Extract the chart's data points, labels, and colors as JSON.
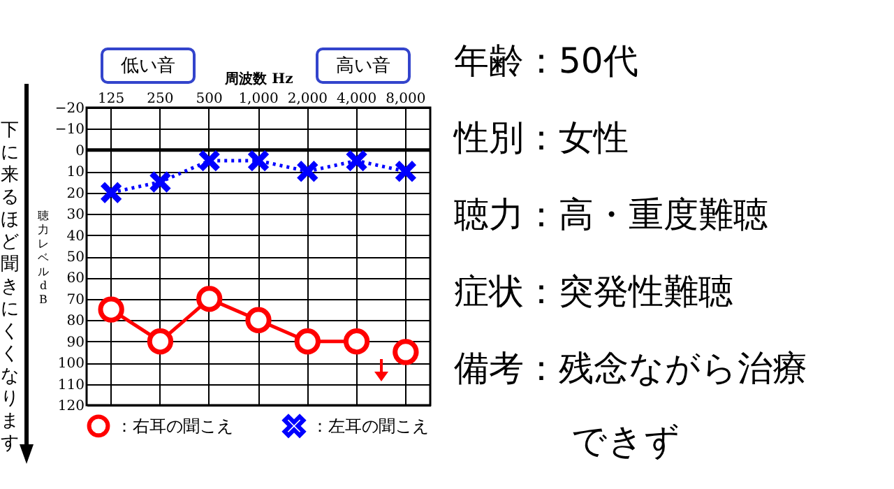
{
  "chart_data": [
    {
      "type": "line",
      "xlabel": "周波数 Hz",
      "ylabel": "聴力レベル dB",
      "categories": [
        "125",
        "250",
        "500",
        "1,000",
        "2,000",
        "4,000",
        "8,000"
      ],
      "series": [
        {
          "name": "：右耳の聞こえ",
          "color": "#ff0000",
          "values": [
            75,
            90,
            70,
            80,
            90,
            90,
            null
          ],
          "marker": "circle",
          "line_style": "solid"
        },
        {
          "color": "#ff0000",
          "values": [
            null,
            null,
            null,
            null,
            null,
            null,
            95
          ],
          "marker": "circle"
        },
        {
          "name": "：左耳の聞こえ",
          "color": "#0000ff",
          "values": [
            20,
            15,
            5,
            5,
            10,
            5,
            10
          ],
          "marker": "cross",
          "line_style": "dotted"
        }
      ],
      "ylim": [
        120,
        -20
      ],
      "yticks": [
        {
          "value": -20,
          "label": "−20"
        },
        {
          "value": -10,
          "label": "−10"
        },
        0,
        10,
        20,
        30,
        40,
        50,
        60,
        70,
        80,
        90,
        100,
        110,
        120
      ],
      "ref_lines": [
        {
          "axis": "y",
          "value": 0
        }
      ],
      "grid": true,
      "legend": "bottom",
      "annotations": [
        "低い音",
        "高い音",
        "下に来るほど聞きにくくなります"
      ]
    },
    {
      "type": "other",
      "annotations": [
        "年齢：50代",
        "性別：女性",
        "聴力：高・重度難聴",
        "症状：突発性難聴",
        "備考：残念ながら治療できず"
      ]
    }
  ]
}
